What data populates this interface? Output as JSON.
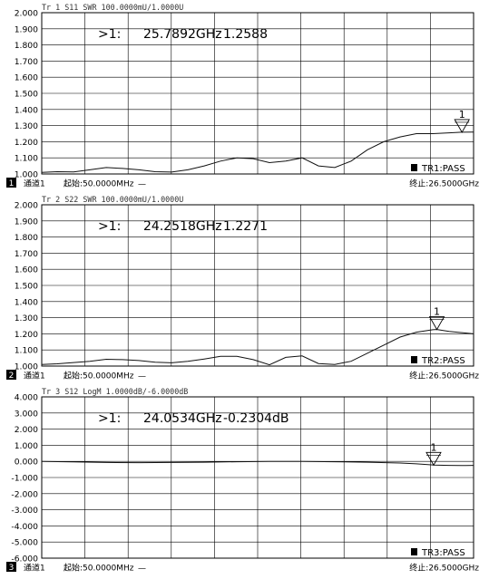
{
  "chart_data": [
    {
      "type": "line",
      "trace_header": "Tr 1  S11 SWR 100.0000mU/1.0000U",
      "y_ticks": [
        "2.000",
        "1.900",
        "1.800",
        "1.700",
        "1.600",
        "1.500",
        "1.400",
        "1.300",
        "1.200",
        "1.100",
        "1.000"
      ],
      "ylim": [
        1.0,
        2.0
      ],
      "xlim_ghz": [
        0.05,
        26.5
      ],
      "marker": {
        "symbol": ">1:",
        "freq": "25.7892GHz",
        "value": "1.2588",
        "label": "1",
        "x_ghz": 25.7892,
        "y": 1.2588
      },
      "status": "TR1:PASS",
      "footer": {
        "channel_num": "1",
        "channel": "通道1",
        "start": "起始:50.0000MHz",
        "dash": "—",
        "stop": "终止:26.5000GHz"
      },
      "x": [
        0.05,
        1,
        2,
        3,
        4,
        5,
        6,
        7,
        8,
        9,
        10,
        11,
        12,
        13,
        14,
        15,
        16,
        17,
        18,
        19,
        20,
        21,
        22,
        23,
        24,
        25,
        25.79,
        26.5
      ],
      "y": [
        1.01,
        1.014,
        1.013,
        1.026,
        1.04,
        1.034,
        1.026,
        1.014,
        1.012,
        1.026,
        1.05,
        1.08,
        1.1,
        1.095,
        1.07,
        1.08,
        1.1,
        1.05,
        1.04,
        1.08,
        1.15,
        1.2,
        1.23,
        1.25,
        1.25,
        1.255,
        1.2588,
        1.26
      ]
    },
    {
      "type": "line",
      "trace_header": "Tr 2  S22 SWR 100.0000mU/1.0000U",
      "y_ticks": [
        "2.000",
        "1.900",
        "1.800",
        "1.700",
        "1.600",
        "1.500",
        "1.400",
        "1.300",
        "1.200",
        "1.100",
        "1.000"
      ],
      "ylim": [
        1.0,
        2.0
      ],
      "xlim_ghz": [
        0.05,
        26.5
      ],
      "marker": {
        "symbol": ">1:",
        "freq": "24.2518GHz",
        "value": "1.2271",
        "label": "1",
        "x_ghz": 24.2518,
        "y": 1.2271
      },
      "status": "TR2:PASS",
      "footer": {
        "channel_num": "2",
        "channel": "通道1",
        "start": "起始:50.0000MHz",
        "dash": "—",
        "stop": "终止:26.5000GHz"
      },
      "x": [
        0.05,
        1,
        2,
        3,
        4,
        5,
        6,
        7,
        8,
        9,
        10,
        11,
        12,
        13,
        14,
        15,
        16,
        17,
        18,
        19,
        20,
        21,
        22,
        23,
        24,
        24.25,
        25,
        26,
        26.5
      ],
      "y": [
        1.01,
        1.014,
        1.022,
        1.03,
        1.042,
        1.04,
        1.034,
        1.024,
        1.02,
        1.03,
        1.044,
        1.06,
        1.06,
        1.04,
        1.008,
        1.054,
        1.063,
        1.016,
        1.01,
        1.03,
        1.08,
        1.13,
        1.18,
        1.21,
        1.225,
        1.2271,
        1.215,
        1.205,
        1.2
      ]
    },
    {
      "type": "line",
      "trace_header": "Tr 3  S12 LogM 1.0000dB/-6.0000dB",
      "y_ticks": [
        "4.000",
        "3.000",
        "2.000",
        "1.000",
        "0.000",
        "-1.000",
        "-2.000",
        "-3.000",
        "-4.000",
        "-5.000",
        "-6.000"
      ],
      "ylim": [
        -6.0,
        4.0
      ],
      "xlim_ghz": [
        0.05,
        26.5
      ],
      "marker": {
        "symbol": ">1:",
        "freq": "24.0534GHz",
        "value": "-0.2304dB",
        "label": "1",
        "x_ghz": 24.0534,
        "y": -0.2304
      },
      "status": "TR3:PASS",
      "footer": {
        "channel_num": "3",
        "channel": "通道1",
        "start": "起始:50.0000MHz",
        "dash": "—",
        "stop": "终止:26.5000GHz"
      },
      "x": [
        0.05,
        2,
        4,
        6,
        8,
        10,
        12,
        14,
        16,
        18,
        20,
        22,
        23,
        24,
        24.05,
        25,
        26,
        26.5
      ],
      "y": [
        0.0,
        -0.03,
        -0.07,
        -0.08,
        -0.07,
        -0.05,
        -0.02,
        0.0,
        0.0,
        -0.02,
        -0.05,
        -0.1,
        -0.15,
        -0.22,
        -0.2304,
        -0.25,
        -0.26,
        -0.25
      ]
    }
  ]
}
